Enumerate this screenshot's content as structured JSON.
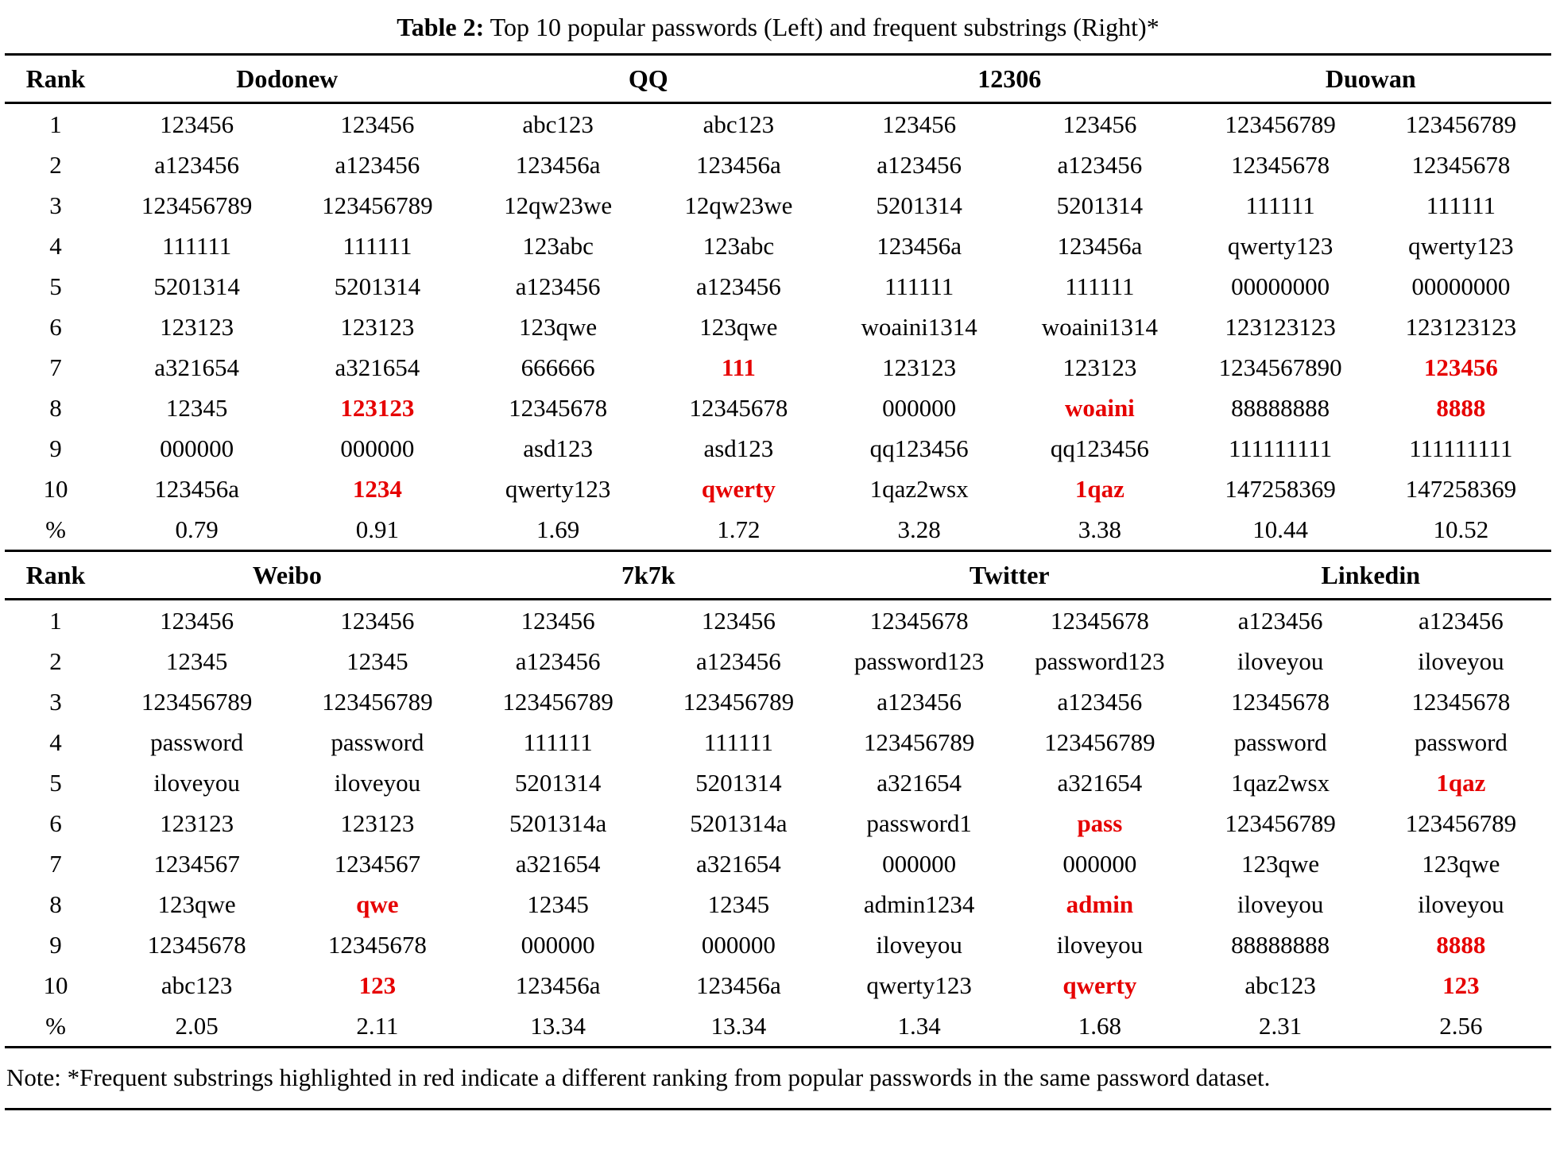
{
  "caption": {
    "label": "Table 2:",
    "text": " Top 10 popular passwords (Left) and frequent substrings (Right)*"
  },
  "rank_header": "Rank",
  "percent_label": "%",
  "ranks": [
    "1",
    "2",
    "3",
    "4",
    "5",
    "6",
    "7",
    "8",
    "9",
    "10"
  ],
  "colors": {
    "highlight": "#e60000",
    "text": "#000000",
    "rule": "#000000"
  },
  "note": "Note: *Frequent substrings highlighted in red indicate a different ranking from popular passwords in the same password dataset.",
  "sections": [
    {
      "datasets": [
        {
          "name": "Dodonew",
          "passwords": [
            "123456",
            "a123456",
            "123456789",
            "111111",
            "5201314",
            "123123",
            "a321654",
            "12345",
            "000000",
            "123456a"
          ],
          "substrings": [
            "123456",
            "a123456",
            "123456789",
            "111111",
            "5201314",
            "123123",
            "a321654",
            "123123",
            "000000",
            "1234"
          ],
          "red_ranks": [
            8,
            10
          ],
          "password_pct": "0.79",
          "substring_pct": "0.91"
        },
        {
          "name": "QQ",
          "passwords": [
            "abc123",
            "123456a",
            "12qw23we",
            "123abc",
            "a123456",
            "123qwe",
            "666666",
            "12345678",
            "asd123",
            "qwerty123"
          ],
          "substrings": [
            "abc123",
            "123456a",
            "12qw23we",
            "123abc",
            "a123456",
            "123qwe",
            "111",
            "12345678",
            "asd123",
            "qwerty"
          ],
          "red_ranks": [
            7,
            10
          ],
          "password_pct": "1.69",
          "substring_pct": "1.72"
        },
        {
          "name": "12306",
          "passwords": [
            "123456",
            "a123456",
            "5201314",
            "123456a",
            "111111",
            "woaini1314",
            "123123",
            "000000",
            "qq123456",
            "1qaz2wsx"
          ],
          "substrings": [
            "123456",
            "a123456",
            "5201314",
            "123456a",
            "111111",
            "woaini1314",
            "123123",
            "woaini",
            "qq123456",
            "1qaz"
          ],
          "red_ranks": [
            8,
            10
          ],
          "password_pct": "3.28",
          "substring_pct": "3.38"
        },
        {
          "name": "Duowan",
          "passwords": [
            "123456789",
            "12345678",
            "111111",
            "qwerty123",
            "00000000",
            "123123123",
            "1234567890",
            "88888888",
            "111111111",
            "147258369"
          ],
          "substrings": [
            "123456789",
            "12345678",
            "111111",
            "qwerty123",
            "00000000",
            "123123123",
            "123456",
            "8888",
            "111111111",
            "147258369"
          ],
          "red_ranks": [
            7,
            8
          ],
          "password_pct": "10.44",
          "substring_pct": "10.52"
        }
      ]
    },
    {
      "datasets": [
        {
          "name": "Weibo",
          "passwords": [
            "123456",
            "12345",
            "123456789",
            "password",
            "iloveyou",
            "123123",
            "1234567",
            "123qwe",
            "12345678",
            "abc123"
          ],
          "substrings": [
            "123456",
            "12345",
            "123456789",
            "password",
            "iloveyou",
            "123123",
            "1234567",
            "qwe",
            "12345678",
            "123"
          ],
          "red_ranks": [
            8,
            10
          ],
          "password_pct": "2.05",
          "substring_pct": "2.11"
        },
        {
          "name": "7k7k",
          "passwords": [
            "123456",
            "a123456",
            "123456789",
            "111111",
            "5201314",
            "5201314a",
            "a321654",
            "12345",
            "000000",
            "123456a"
          ],
          "substrings": [
            "123456",
            "a123456",
            "123456789",
            "111111",
            "5201314",
            "5201314a",
            "a321654",
            "12345",
            "000000",
            "123456a"
          ],
          "red_ranks": [],
          "password_pct": "13.34",
          "substring_pct": "13.34"
        },
        {
          "name": "Twitter",
          "passwords": [
            "12345678",
            "password123",
            "a123456",
            "123456789",
            "a321654",
            "password1",
            "000000",
            "admin1234",
            "iloveyou",
            "qwerty123"
          ],
          "substrings": [
            "12345678",
            "password123",
            "a123456",
            "123456789",
            "a321654",
            "pass",
            "000000",
            "admin",
            "iloveyou",
            "qwerty"
          ],
          "red_ranks": [
            6,
            8,
            10
          ],
          "password_pct": "1.34",
          "substring_pct": "1.68"
        },
        {
          "name": "Linkedin",
          "passwords": [
            "a123456",
            "iloveyou",
            "12345678",
            "password",
            "1qaz2wsx",
            "123456789",
            "123qwe",
            "iloveyou",
            "88888888",
            "abc123"
          ],
          "substrings": [
            "a123456",
            "iloveyou",
            "12345678",
            "password",
            "1qaz",
            "123456789",
            "123qwe",
            "iloveyou",
            "8888",
            "123"
          ],
          "red_ranks": [
            5,
            9,
            10
          ],
          "password_pct": "2.31",
          "substring_pct": "2.56"
        }
      ]
    }
  ]
}
